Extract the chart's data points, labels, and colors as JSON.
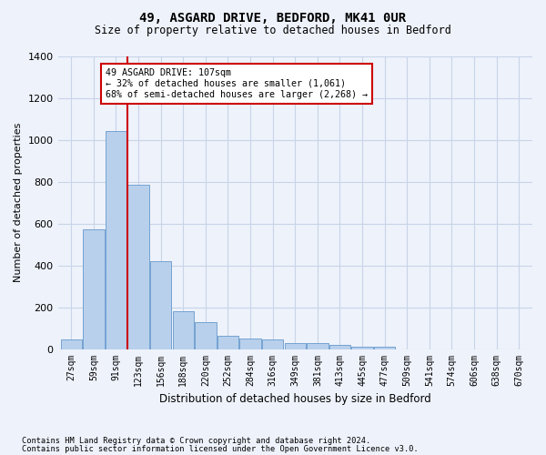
{
  "title": "49, ASGARD DRIVE, BEDFORD, MK41 0UR",
  "subtitle": "Size of property relative to detached houses in Bedford",
  "xlabel": "Distribution of detached houses by size in Bedford",
  "ylabel": "Number of detached properties",
  "bar_values": [
    45,
    570,
    1040,
    785,
    420,
    180,
    130,
    65,
    50,
    45,
    28,
    28,
    20,
    10,
    10,
    0,
    0,
    0,
    0,
    0,
    0
  ],
  "bin_labels": [
    "27sqm",
    "59sqm",
    "91sqm",
    "123sqm",
    "156sqm",
    "188sqm",
    "220sqm",
    "252sqm",
    "284sqm",
    "316sqm",
    "349sqm",
    "381sqm",
    "413sqm",
    "445sqm",
    "477sqm",
    "509sqm",
    "541sqm",
    "574sqm",
    "606sqm",
    "638sqm",
    "670sqm"
  ],
  "bar_color": "#b8d0ec",
  "bar_edge_color": "#6699cc",
  "background_color": "#eef2fb",
  "grid_color": "#c8d4e8",
  "vline_position": 2.5,
  "vline_color": "#cc0000",
  "annotation_text": "49 ASGARD DRIVE: 107sqm\n← 32% of detached houses are smaller (1,061)\n68% of semi-detached houses are larger (2,268) →",
  "annotation_box_color": "#ffffff",
  "annotation_box_edge": "#cc0000",
  "ylim": [
    0,
    1400
  ],
  "yticks": [
    0,
    200,
    400,
    600,
    800,
    1000,
    1200,
    1400
  ],
  "footnote1": "Contains HM Land Registry data © Crown copyright and database right 2024.",
  "footnote2": "Contains public sector information licensed under the Open Government Licence v3.0."
}
